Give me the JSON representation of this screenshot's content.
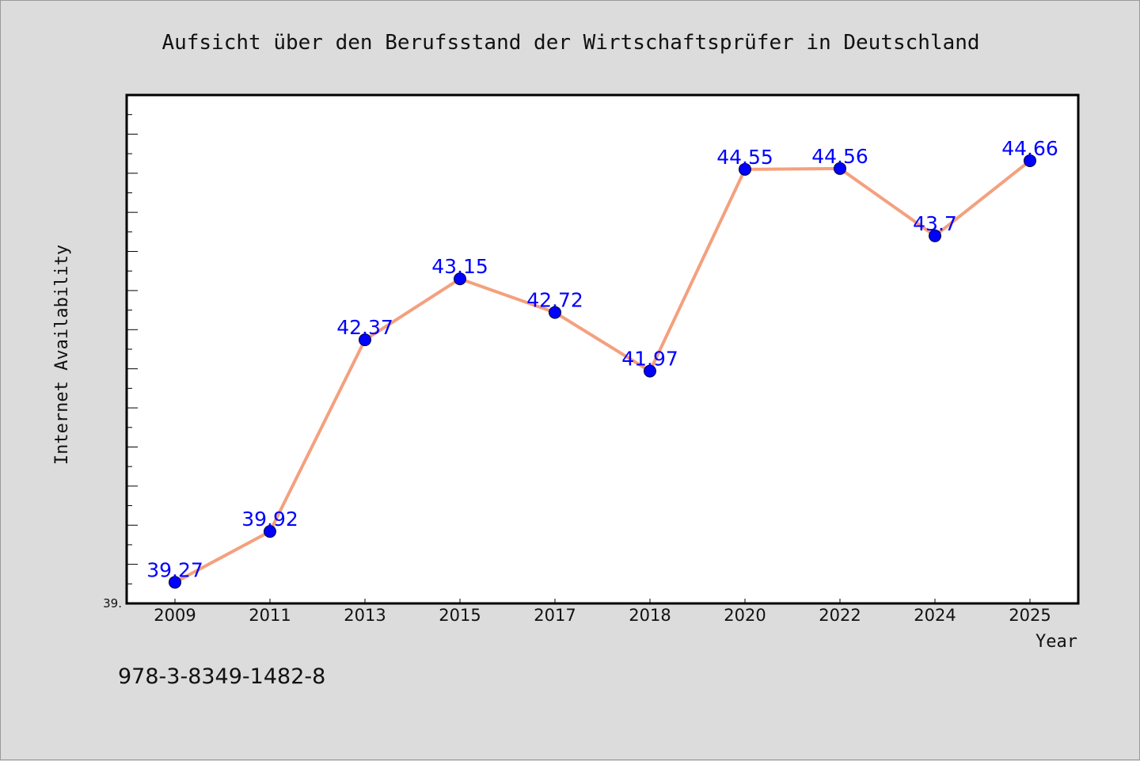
{
  "chart_data": {
    "type": "line",
    "title": "Aufsicht über den Berufsstand der Wirtschaftsprüfer in Deutschland",
    "xlabel": "Year",
    "ylabel": "Internet Availability",
    "categories": [
      "2009",
      "2011",
      "2013",
      "2015",
      "2017",
      "2018",
      "2020",
      "2022",
      "2024",
      "2025"
    ],
    "series": [
      {
        "values": [
          39.27,
          39.92,
          42.37,
          43.15,
          42.72,
          41.97,
          44.55,
          44.56,
          43.7,
          44.66
        ],
        "data_labels": [
          "39.27",
          "39.92",
          "42.37",
          "43.15",
          "42.72",
          "41.97",
          "44.55",
          "44.56",
          "43.7",
          "44.66"
        ]
      }
    ],
    "ylim": [
      39.0,
      45.5
    ],
    "y_min_label": "39.",
    "grid": false,
    "legend": "none",
    "colors": {
      "line": "#f4a07e",
      "marker": "#0000ff",
      "label": "#0000ff",
      "background": "#dcdcdc",
      "plot_bg": "#ffffff"
    }
  },
  "footnote": "978-3-8349-1482-8"
}
